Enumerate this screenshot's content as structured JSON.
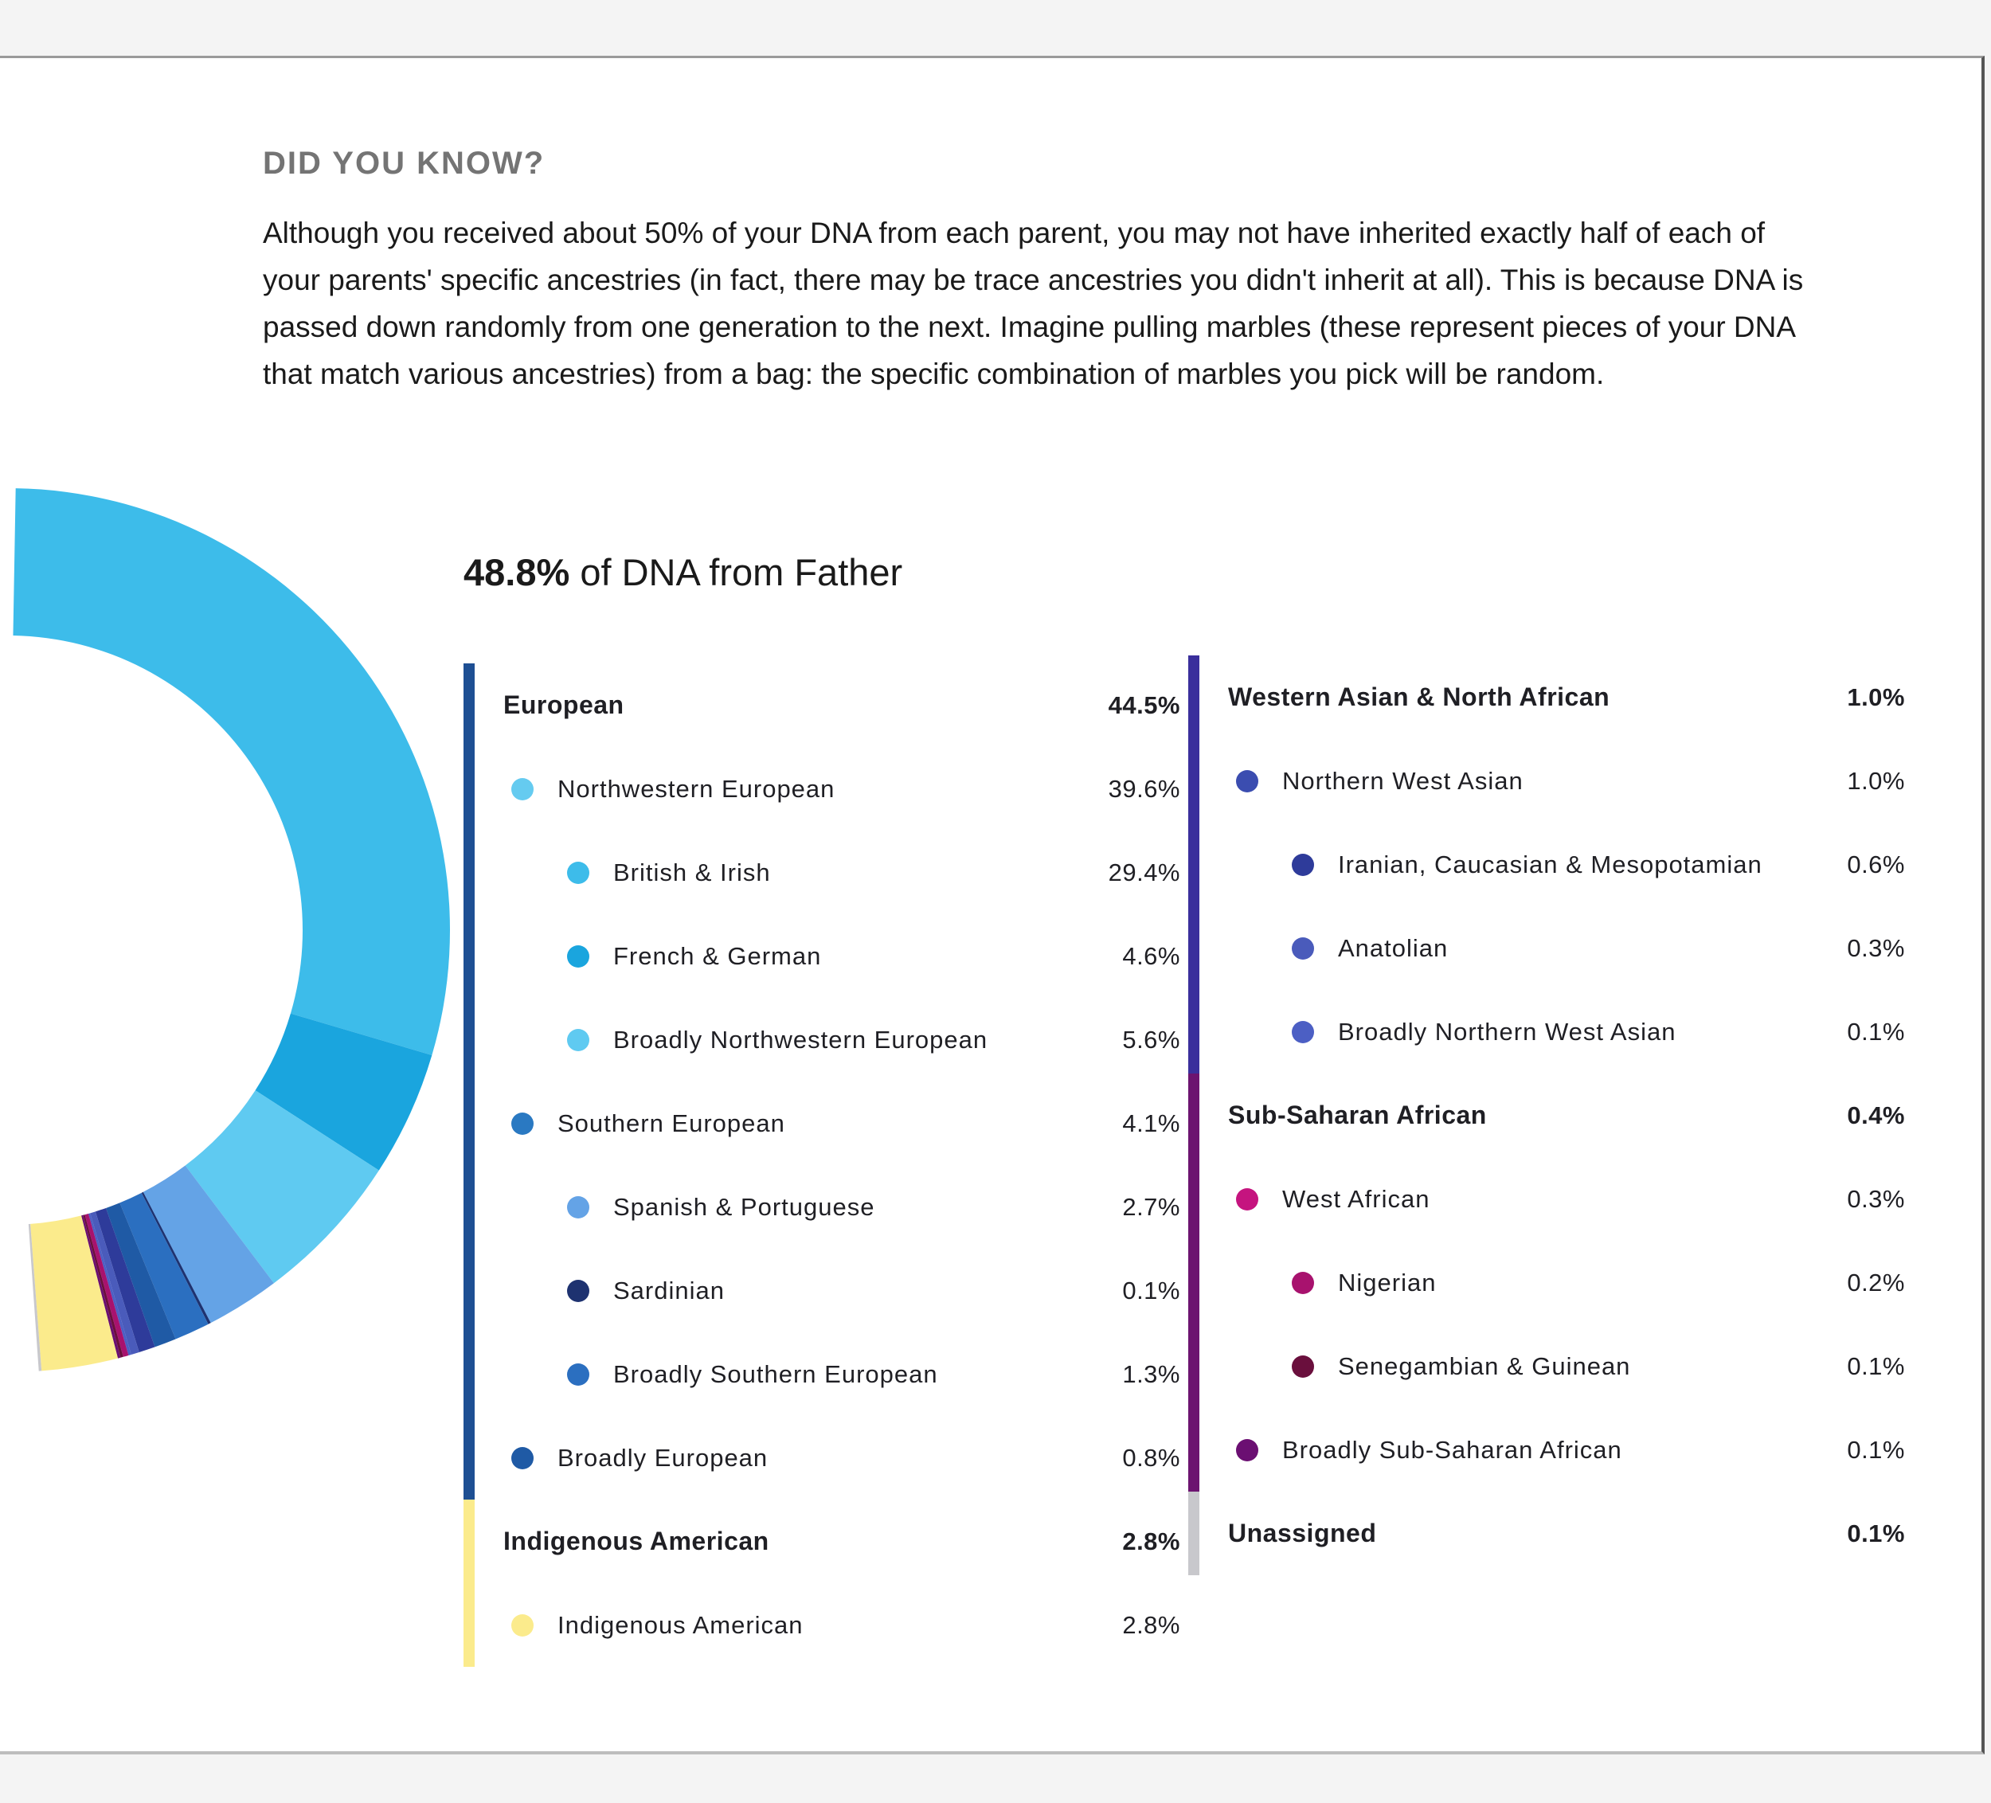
{
  "kicker": "DID YOU KNOW?",
  "intro": "Although you received about 50% of your DNA from each parent, you may not have inherited exactly half of each of your parents' specific ancestries (in fact, there may be trace ancestries you didn't inherit at all). This is because DNA is passed down randomly from one generation to the next. Imagine pulling marbles (these represent pieces of your DNA that match various ancestries) from a bag: the specific combination of marbles you pick will be random.",
  "heading": {
    "percent": "48.8%",
    "text": " of DNA from Father"
  },
  "left_column": {
    "groups": [
      {
        "name": "European",
        "percent": "44.5%",
        "bar_color": "#1e4f93",
        "items": [
          {
            "level": "sub",
            "name": "Northwestern European",
            "percent": "39.6%",
            "color": "#65cbf0"
          },
          {
            "level": "subsub",
            "name": "British & Irish",
            "percent": "29.4%",
            "color": "#3dbcea"
          },
          {
            "level": "subsub",
            "name": "French & German",
            "percent": "4.6%",
            "color": "#1aa5de"
          },
          {
            "level": "subsub",
            "name": "Broadly Northwestern European",
            "percent": "5.6%",
            "color": "#5fcaf1"
          },
          {
            "level": "sub",
            "name": "Southern European",
            "percent": "4.1%",
            "color": "#2a79c2"
          },
          {
            "level": "subsub",
            "name": "Spanish & Portuguese",
            "percent": "2.7%",
            "color": "#64a3e6"
          },
          {
            "level": "subsub",
            "name": "Sardinian",
            "percent": "0.1%",
            "color": "#1e3270"
          },
          {
            "level": "subsub",
            "name": "Broadly Southern European",
            "percent": "1.3%",
            "color": "#2b6fc0"
          },
          {
            "level": "sub",
            "name": "Broadly European",
            "percent": "0.8%",
            "color": "#1f5aa5"
          }
        ]
      },
      {
        "name": "Indigenous American",
        "percent": "2.8%",
        "bar_color": "#fbeb8c",
        "items": [
          {
            "level": "sub",
            "name": "Indigenous American",
            "percent": "2.8%",
            "color": "#fbeb8c"
          }
        ]
      }
    ]
  },
  "right_column": {
    "groups": [
      {
        "name": "Western Asian & North African",
        "percent": "1.0%",
        "bar_color": "#3a2f9c",
        "items": [
          {
            "level": "sub",
            "name": "Northern West Asian",
            "percent": "1.0%",
            "color": "#3b4db0"
          },
          {
            "level": "subsub",
            "name": "Iranian, Caucasian & Mesopotamian",
            "percent": "0.6%",
            "color": "#2e3b9a"
          },
          {
            "level": "subsub",
            "name": "Anatolian",
            "percent": "0.3%",
            "color": "#4a5bbb"
          },
          {
            "level": "subsub",
            "name": "Broadly Northern West Asian",
            "percent": "0.1%",
            "color": "#4c5fc4"
          }
        ]
      },
      {
        "name": "Sub-Saharan African",
        "percent": "0.4%",
        "bar_color": "#6c1470",
        "items": [
          {
            "level": "sub",
            "name": "West African",
            "percent": "0.3%",
            "color": "#c5147f"
          },
          {
            "level": "subsub",
            "name": "Nigerian",
            "percent": "0.2%",
            "color": "#a8126e"
          },
          {
            "level": "subsub",
            "name": "Senegambian & Guinean",
            "percent": "0.1%",
            "color": "#6a0f3d"
          },
          {
            "level": "sub",
            "name": "Broadly Sub-Saharan African",
            "percent": "0.1%",
            "color": "#6b0f72"
          }
        ]
      },
      {
        "name": "Unassigned",
        "percent": "0.1%",
        "bar_color": "#c8c8cc",
        "items": []
      }
    ]
  },
  "chart_data": {
    "type": "pie",
    "style": "donut",
    "unit": "%",
    "categories": [
      "British & Irish",
      "French & German",
      "Broadly Northwestern European",
      "Spanish & Portuguese",
      "Sardinian",
      "Broadly Southern European",
      "Broadly European",
      "Iranian, Caucasian & Mesopotamian",
      "Anatolian",
      "Broadly Northern West Asian",
      "Nigerian",
      "Senegambian & Guinean",
      "Broadly Sub-Saharan African",
      "Indigenous American",
      "Unassigned"
    ],
    "values": [
      29.4,
      4.6,
      5.6,
      2.7,
      0.1,
      1.3,
      0.8,
      0.6,
      0.3,
      0.1,
      0.2,
      0.1,
      0.1,
      2.8,
      0.1
    ],
    "colors": [
      "#3dbcea",
      "#1aa5de",
      "#5fcaf1",
      "#64a3e6",
      "#1e3270",
      "#2b6fc0",
      "#1f5aa5",
      "#2e3b9a",
      "#4a5bbb",
      "#4c5fc4",
      "#a8126e",
      "#6a0f3d",
      "#6b0f72",
      "#fbeb8c",
      "#c8c8cc"
    ],
    "total": 48.8
  }
}
